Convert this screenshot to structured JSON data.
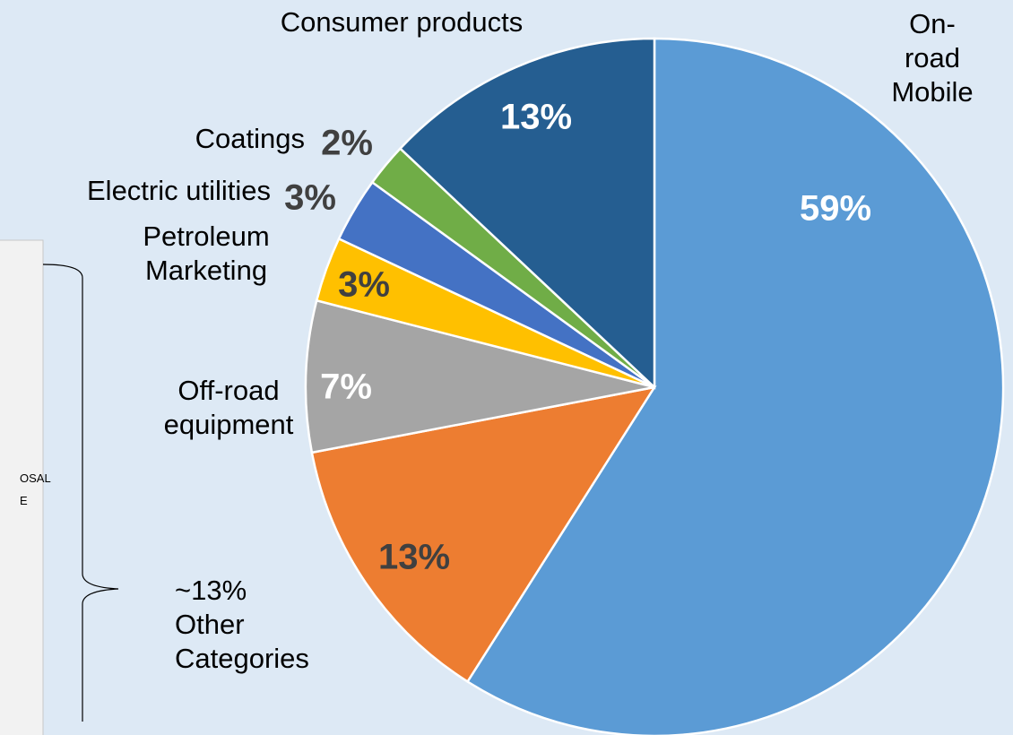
{
  "chart_data": {
    "type": "pie",
    "categories": [
      "On-road\nMobile",
      null,
      "Off-road\nequipment",
      "Petroleum\nMarketing",
      "Electric utilities",
      "Coatings",
      "Consumer products"
    ],
    "values": [
      59,
      13,
      7,
      3,
      3,
      2,
      13
    ],
    "value_labels": [
      "59%",
      "13%",
      "7%",
      "3%",
      "3%",
      "2%",
      "13%"
    ],
    "colors": [
      "#5b9bd5",
      "#ed7d31",
      "#a5a5a5",
      "#ffc000",
      "#4472c4",
      "#70ad47",
      "#255e91"
    ],
    "label_colors": [
      "#ffffff",
      "#404040",
      "#ffffff",
      "#404040",
      "#404040",
      "#404040",
      "#ffffff"
    ],
    "annotation": "~13%\nOther\nCategories",
    "side_texts": [
      "OSAL",
      "E"
    ]
  }
}
